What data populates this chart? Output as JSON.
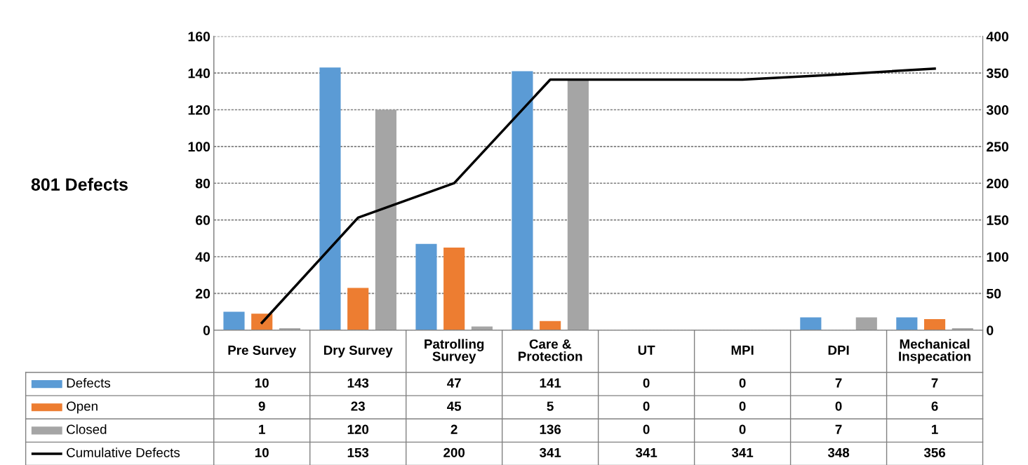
{
  "chart_data": {
    "type": "bar",
    "categories": [
      "Pre Survey",
      "Dry Survey",
      "Patrolling Survey",
      "Care & Protection",
      "UT",
      "MPI",
      "DPI",
      "Mechanical Inspecation"
    ],
    "series": [
      {
        "name": "Defects",
        "color": "#5b9bd5",
        "values": [
          10,
          143,
          47,
          141,
          0,
          0,
          7,
          7
        ]
      },
      {
        "name": "Open",
        "color": "#ed7d31",
        "values": [
          9,
          23,
          45,
          5,
          0,
          0,
          0,
          6
        ]
      },
      {
        "name": "Closed",
        "color": "#a5a5a5",
        "values": [
          1,
          120,
          2,
          136,
          0,
          0,
          7,
          1
        ]
      },
      {
        "name": "Cumulative Defects",
        "color": "#000000",
        "type": "line",
        "axis": "y2",
        "values": [
          10,
          153,
          200,
          341,
          341,
          341,
          348,
          356
        ]
      }
    ],
    "ylim": [
      0,
      160
    ],
    "yticks": [
      0,
      20,
      40,
      60,
      80,
      100,
      120,
      140,
      160
    ],
    "y2lim": [
      0,
      400
    ],
    "y2ticks": [
      0,
      50,
      100,
      150,
      200,
      250,
      300,
      350,
      400
    ],
    "grid": "y",
    "legend": "bottom",
    "data_labels": true,
    "marker": "none",
    "line_style": "solid",
    "annotations": [
      "801 Defects"
    ]
  }
}
